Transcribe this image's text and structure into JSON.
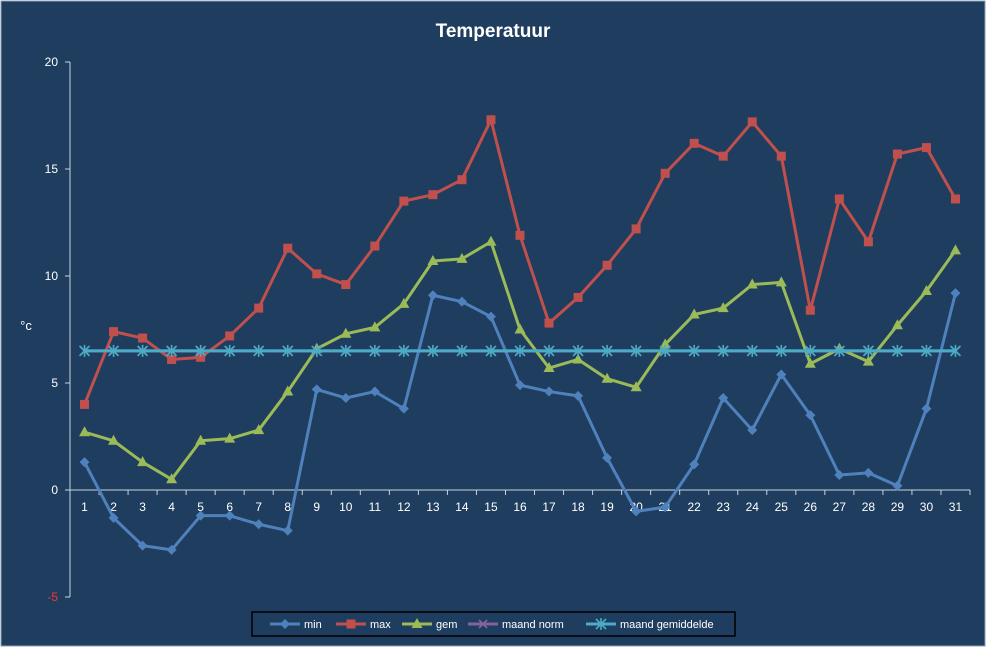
{
  "chart_data": {
    "type": "line",
    "title": "Temperatuur",
    "xlabel": "",
    "ylabel": "°c",
    "ylim": [
      -5,
      20
    ],
    "yticks": [
      "20",
      "15",
      "10",
      "5",
      "0",
      "-5"
    ],
    "x": [
      "1",
      "2",
      "3",
      "4",
      "5",
      "6",
      "7",
      "8",
      "9",
      "10",
      "11",
      "12",
      "13",
      "14",
      "15",
      "16",
      "17",
      "18",
      "19",
      "20",
      "21",
      "22",
      "23",
      "24",
      "25",
      "26",
      "27",
      "28",
      "29",
      "30",
      "31"
    ],
    "grid": false,
    "legend": "bottom",
    "colors": {
      "background": "#1f3d5e",
      "min": "#4f81bd",
      "max": "#c0504d",
      "gem": "#9bbb59",
      "maand_norm": "#8064a2",
      "maand_gemiddelde": "#4bacc6"
    },
    "series": [
      {
        "name": "min",
        "marker": "diamond",
        "values": [
          1.3,
          -1.3,
          -2.6,
          -2.8,
          -1.2,
          -1.2,
          -1.6,
          -1.9,
          4.7,
          4.3,
          4.6,
          3.8,
          9.1,
          8.8,
          8.1,
          4.9,
          4.6,
          4.4,
          1.5,
          -1.0,
          -0.8,
          1.2,
          4.3,
          2.8,
          5.4,
          3.5,
          0.7,
          0.8,
          0.2,
          3.8,
          9.2
        ]
      },
      {
        "name": "max",
        "marker": "square",
        "values": [
          4.0,
          7.4,
          7.1,
          6.1,
          6.2,
          7.2,
          8.5,
          11.3,
          10.1,
          9.6,
          11.4,
          13.5,
          13.8,
          14.5,
          17.3,
          11.9,
          7.8,
          9.0,
          10.5,
          12.2,
          14.8,
          16.2,
          15.6,
          17.2,
          15.6,
          8.4,
          13.6,
          11.6,
          15.7,
          16.0,
          13.6
        ]
      },
      {
        "name": "gem",
        "marker": "triangle",
        "values": [
          2.7,
          2.3,
          1.3,
          0.5,
          2.3,
          2.4,
          2.8,
          4.6,
          6.6,
          7.3,
          7.6,
          8.7,
          10.7,
          10.8,
          11.6,
          7.5,
          5.7,
          6.1,
          5.2,
          4.8,
          6.8,
          8.2,
          8.5,
          9.6,
          9.7,
          5.9,
          6.6,
          6.0,
          7.7,
          9.3,
          11.2
        ]
      },
      {
        "name": "maand norm",
        "marker": "x",
        "values": [
          6.5,
          6.5,
          6.5,
          6.5,
          6.5,
          6.5,
          6.5,
          6.5,
          6.5,
          6.5,
          6.5,
          6.5,
          6.5,
          6.5,
          6.5,
          6.5,
          6.5,
          6.5,
          6.5,
          6.5,
          6.5,
          6.5,
          6.5,
          6.5,
          6.5,
          6.5,
          6.5,
          6.5,
          6.5,
          6.5,
          6.5
        ]
      },
      {
        "name": "maand gemiddelde",
        "marker": "star",
        "values": [
          6.5,
          6.5,
          6.5,
          6.5,
          6.5,
          6.5,
          6.5,
          6.5,
          6.5,
          6.5,
          6.5,
          6.5,
          6.5,
          6.5,
          6.5,
          6.5,
          6.5,
          6.5,
          6.5,
          6.5,
          6.5,
          6.5,
          6.5,
          6.5,
          6.5,
          6.5,
          6.5,
          6.5,
          6.5,
          6.5,
          6.5
        ]
      }
    ]
  }
}
